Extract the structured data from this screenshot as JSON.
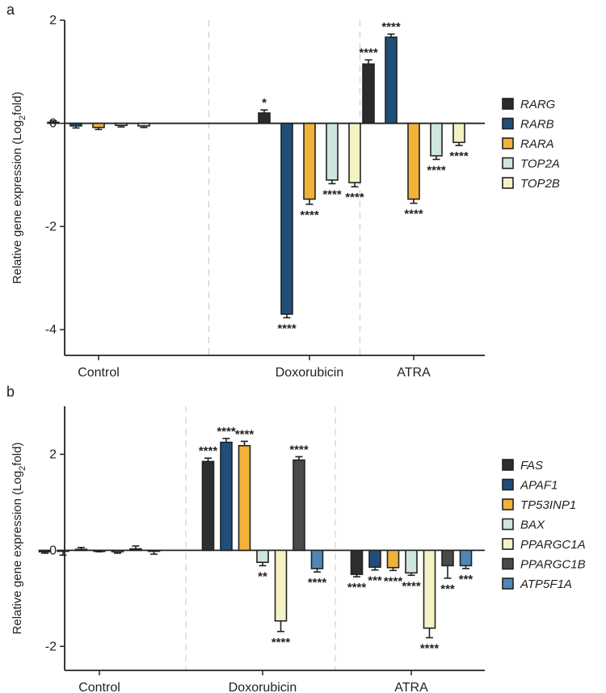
{
  "chart_data": [
    {
      "panel_label": "a",
      "type": "bar",
      "ylabel": "Relative gene expression (Log2fold)",
      "ylabel_main": "Relative gene expression (Log",
      "ylabel_sub": "2",
      "ylabel_end": "fold)",
      "ylim": [
        -4.5,
        2.0
      ],
      "yticks": [
        2,
        0,
        -2,
        -4
      ],
      "ytick_labels": [
        "2",
        "0",
        "-2",
        "-4"
      ],
      "grid": false,
      "legend_position": "right",
      "categories": [
        "Control",
        "Doxorubicin",
        "ATRA"
      ],
      "series": [
        {
          "name": "RARG",
          "color": "#2b2b2b",
          "values": [
            0.02,
            0.2,
            1.15
          ],
          "errors": [
            0.03,
            0.06,
            0.08
          ],
          "significance": [
            "",
            "*",
            "****"
          ]
        },
        {
          "name": "RARB",
          "color": "#1f4e79",
          "values": [
            -0.05,
            -3.7,
            1.67
          ],
          "errors": [
            0.04,
            0.07,
            0.06
          ],
          "significance": [
            "",
            "****",
            "****"
          ]
        },
        {
          "name": "RARA",
          "color": "#f2b23a",
          "values": [
            -0.08,
            -1.47,
            -1.47
          ],
          "errors": [
            0.04,
            0.1,
            0.08
          ],
          "significance": [
            "",
            "****",
            "****"
          ]
        },
        {
          "name": "TOP2A",
          "color": "#cfe6dc",
          "values": [
            -0.04,
            -1.1,
            -0.63
          ],
          "errors": [
            0.03,
            0.07,
            0.07
          ],
          "significance": [
            "",
            "****",
            "****"
          ]
        },
        {
          "name": "TOP2B",
          "color": "#f4f1c4",
          "values": [
            -0.05,
            -1.15,
            -0.37
          ],
          "errors": [
            0.03,
            0.08,
            0.06
          ],
          "significance": [
            "",
            "****",
            "****"
          ]
        }
      ]
    },
    {
      "panel_label": "b",
      "type": "bar",
      "ylabel": "Relative gene expression (Log2fold)",
      "ylabel_main": "Relative gene expression (Log",
      "ylabel_sub": "2",
      "ylabel_end": "fold)",
      "ylim": [
        -2.5,
        3.0
      ],
      "yticks": [
        2,
        0,
        -2
      ],
      "ytick_labels": [
        "2",
        "0",
        "-2"
      ],
      "grid": false,
      "legend_position": "right",
      "categories": [
        "Control",
        "Doxorubicin",
        "ATRA"
      ],
      "series": [
        {
          "name": "FAS",
          "color": "#2e2e2e",
          "values": [
            -0.03,
            1.85,
            -0.5
          ],
          "errors": [
            0.03,
            0.07,
            0.05
          ],
          "significance": [
            "",
            "****",
            "****"
          ]
        },
        {
          "name": "APAF1",
          "color": "#1f4e79",
          "values": [
            -0.02,
            2.25,
            -0.35
          ],
          "errors": [
            0.08,
            0.08,
            0.06
          ],
          "significance": [
            "",
            "****",
            "***"
          ]
        },
        {
          "name": "TP53INP1",
          "color": "#f2b23a",
          "values": [
            0.02,
            2.18,
            -0.36
          ],
          "errors": [
            0.04,
            0.09,
            0.06
          ],
          "significance": [
            "",
            "****",
            "****"
          ]
        },
        {
          "name": "BAX",
          "color": "#cfe6dc",
          "values": [
            -0.01,
            -0.25,
            -0.47
          ],
          "errors": [
            0.02,
            0.07,
            0.05
          ],
          "significance": [
            "",
            "**",
            "****"
          ]
        },
        {
          "name": "PPARGC1A",
          "color": "#f4f1c4",
          "values": [
            -0.03,
            -1.47,
            -1.62
          ],
          "errors": [
            0.03,
            0.22,
            0.2
          ],
          "significance": [
            "",
            "****",
            "****"
          ]
        },
        {
          "name": "PPARGC1B",
          "color": "#4a4a4a",
          "values": [
            0.03,
            1.88,
            -0.32
          ],
          "errors": [
            0.06,
            0.07,
            0.26
          ],
          "significance": [
            "",
            "****",
            "***"
          ]
        },
        {
          "name": "ATP5F1A",
          "color": "#4f86b8",
          "values": [
            -0.02,
            -0.38,
            -0.32
          ],
          "errors": [
            0.06,
            0.07,
            0.06
          ],
          "significance": [
            "",
            "****",
            "***"
          ]
        }
      ]
    }
  ]
}
